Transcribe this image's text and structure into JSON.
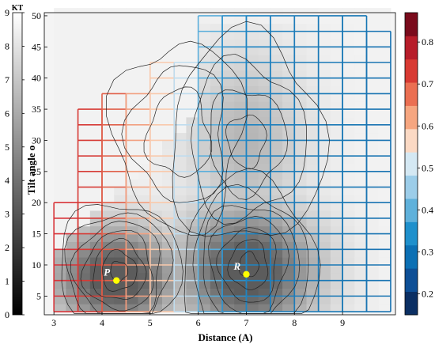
{
  "chart_data": {
    "type": "heatmap",
    "title": "",
    "xlabel": "Distance (A)",
    "ylabel": "Tilt angle o",
    "xlim": [
      2.8,
      10.1
    ],
    "ylim": [
      2,
      50.5
    ],
    "x_ticks": [
      3,
      4,
      5,
      6,
      7,
      8,
      9
    ],
    "y_ticks": [
      5,
      10,
      15,
      20,
      25,
      30,
      35,
      40,
      45,
      50
    ],
    "grid_cell": {
      "dx": 0.5,
      "dy": 2.5
    },
    "left_colorbar": {
      "label": "KT",
      "range": [
        0,
        9
      ],
      "ticks": [
        0,
        1,
        2,
        3,
        4,
        5,
        6,
        7,
        8,
        9
      ],
      "colors": [
        "#000000",
        "#ffffff"
      ]
    },
    "right_colorbar": {
      "range": [
        0.15,
        0.87
      ],
      "ticks": [
        0.2,
        0.3,
        0.4,
        0.5,
        0.6,
        0.7,
        0.8
      ],
      "colors": [
        "#0b2f63",
        "#0e4f96",
        "#0c70b4",
        "#1f90cc",
        "#5fb1db",
        "#9ccde9",
        "#d4e8f3",
        "#fbd9c4",
        "#f6a680",
        "#eb6f52",
        "#d83a33",
        "#b71d2a",
        "#7a0b1c"
      ]
    },
    "columns": [
      {
        "x": 3.0,
        "ymax": 20,
        "color": "#d8353a"
      },
      {
        "x": 3.5,
        "ymax": 35,
        "color": "#d63a35"
      },
      {
        "x": 4.0,
        "ymax": 37.5,
        "color": "#e0604a"
      },
      {
        "x": 4.5,
        "ymax": 37.5,
        "color": "#f2a080"
      },
      {
        "x": 5.0,
        "ymax": 42.5,
        "color": "#f9c9ac"
      },
      {
        "x": 5.5,
        "ymax": 42.5,
        "color": "#bfdcee"
      },
      {
        "x": 6.0,
        "ymax": 50,
        "color": "#5aaedb"
      },
      {
        "x": 6.5,
        "ymax": 50,
        "color": "#2d8fca"
      },
      {
        "x": 7.0,
        "ymax": 50,
        "color": "#1e84c2"
      },
      {
        "x": 7.5,
        "ymax": 50,
        "color": "#1e7fbd"
      },
      {
        "x": 8.0,
        "ymax": 50,
        "color": "#1e7cb9"
      },
      {
        "x": 8.5,
        "ymax": 50,
        "color": "#1978b6"
      },
      {
        "x": 9.0,
        "ymax": 50,
        "color": "#1676b4"
      },
      {
        "x": 9.5,
        "ymax": 47.5,
        "color": "#1a74b2"
      }
    ],
    "points": [
      {
        "label": "P",
        "x": 4.3,
        "y": 7.5
      },
      {
        "label": "R",
        "x": 7.0,
        "y": 8.5
      }
    ]
  }
}
